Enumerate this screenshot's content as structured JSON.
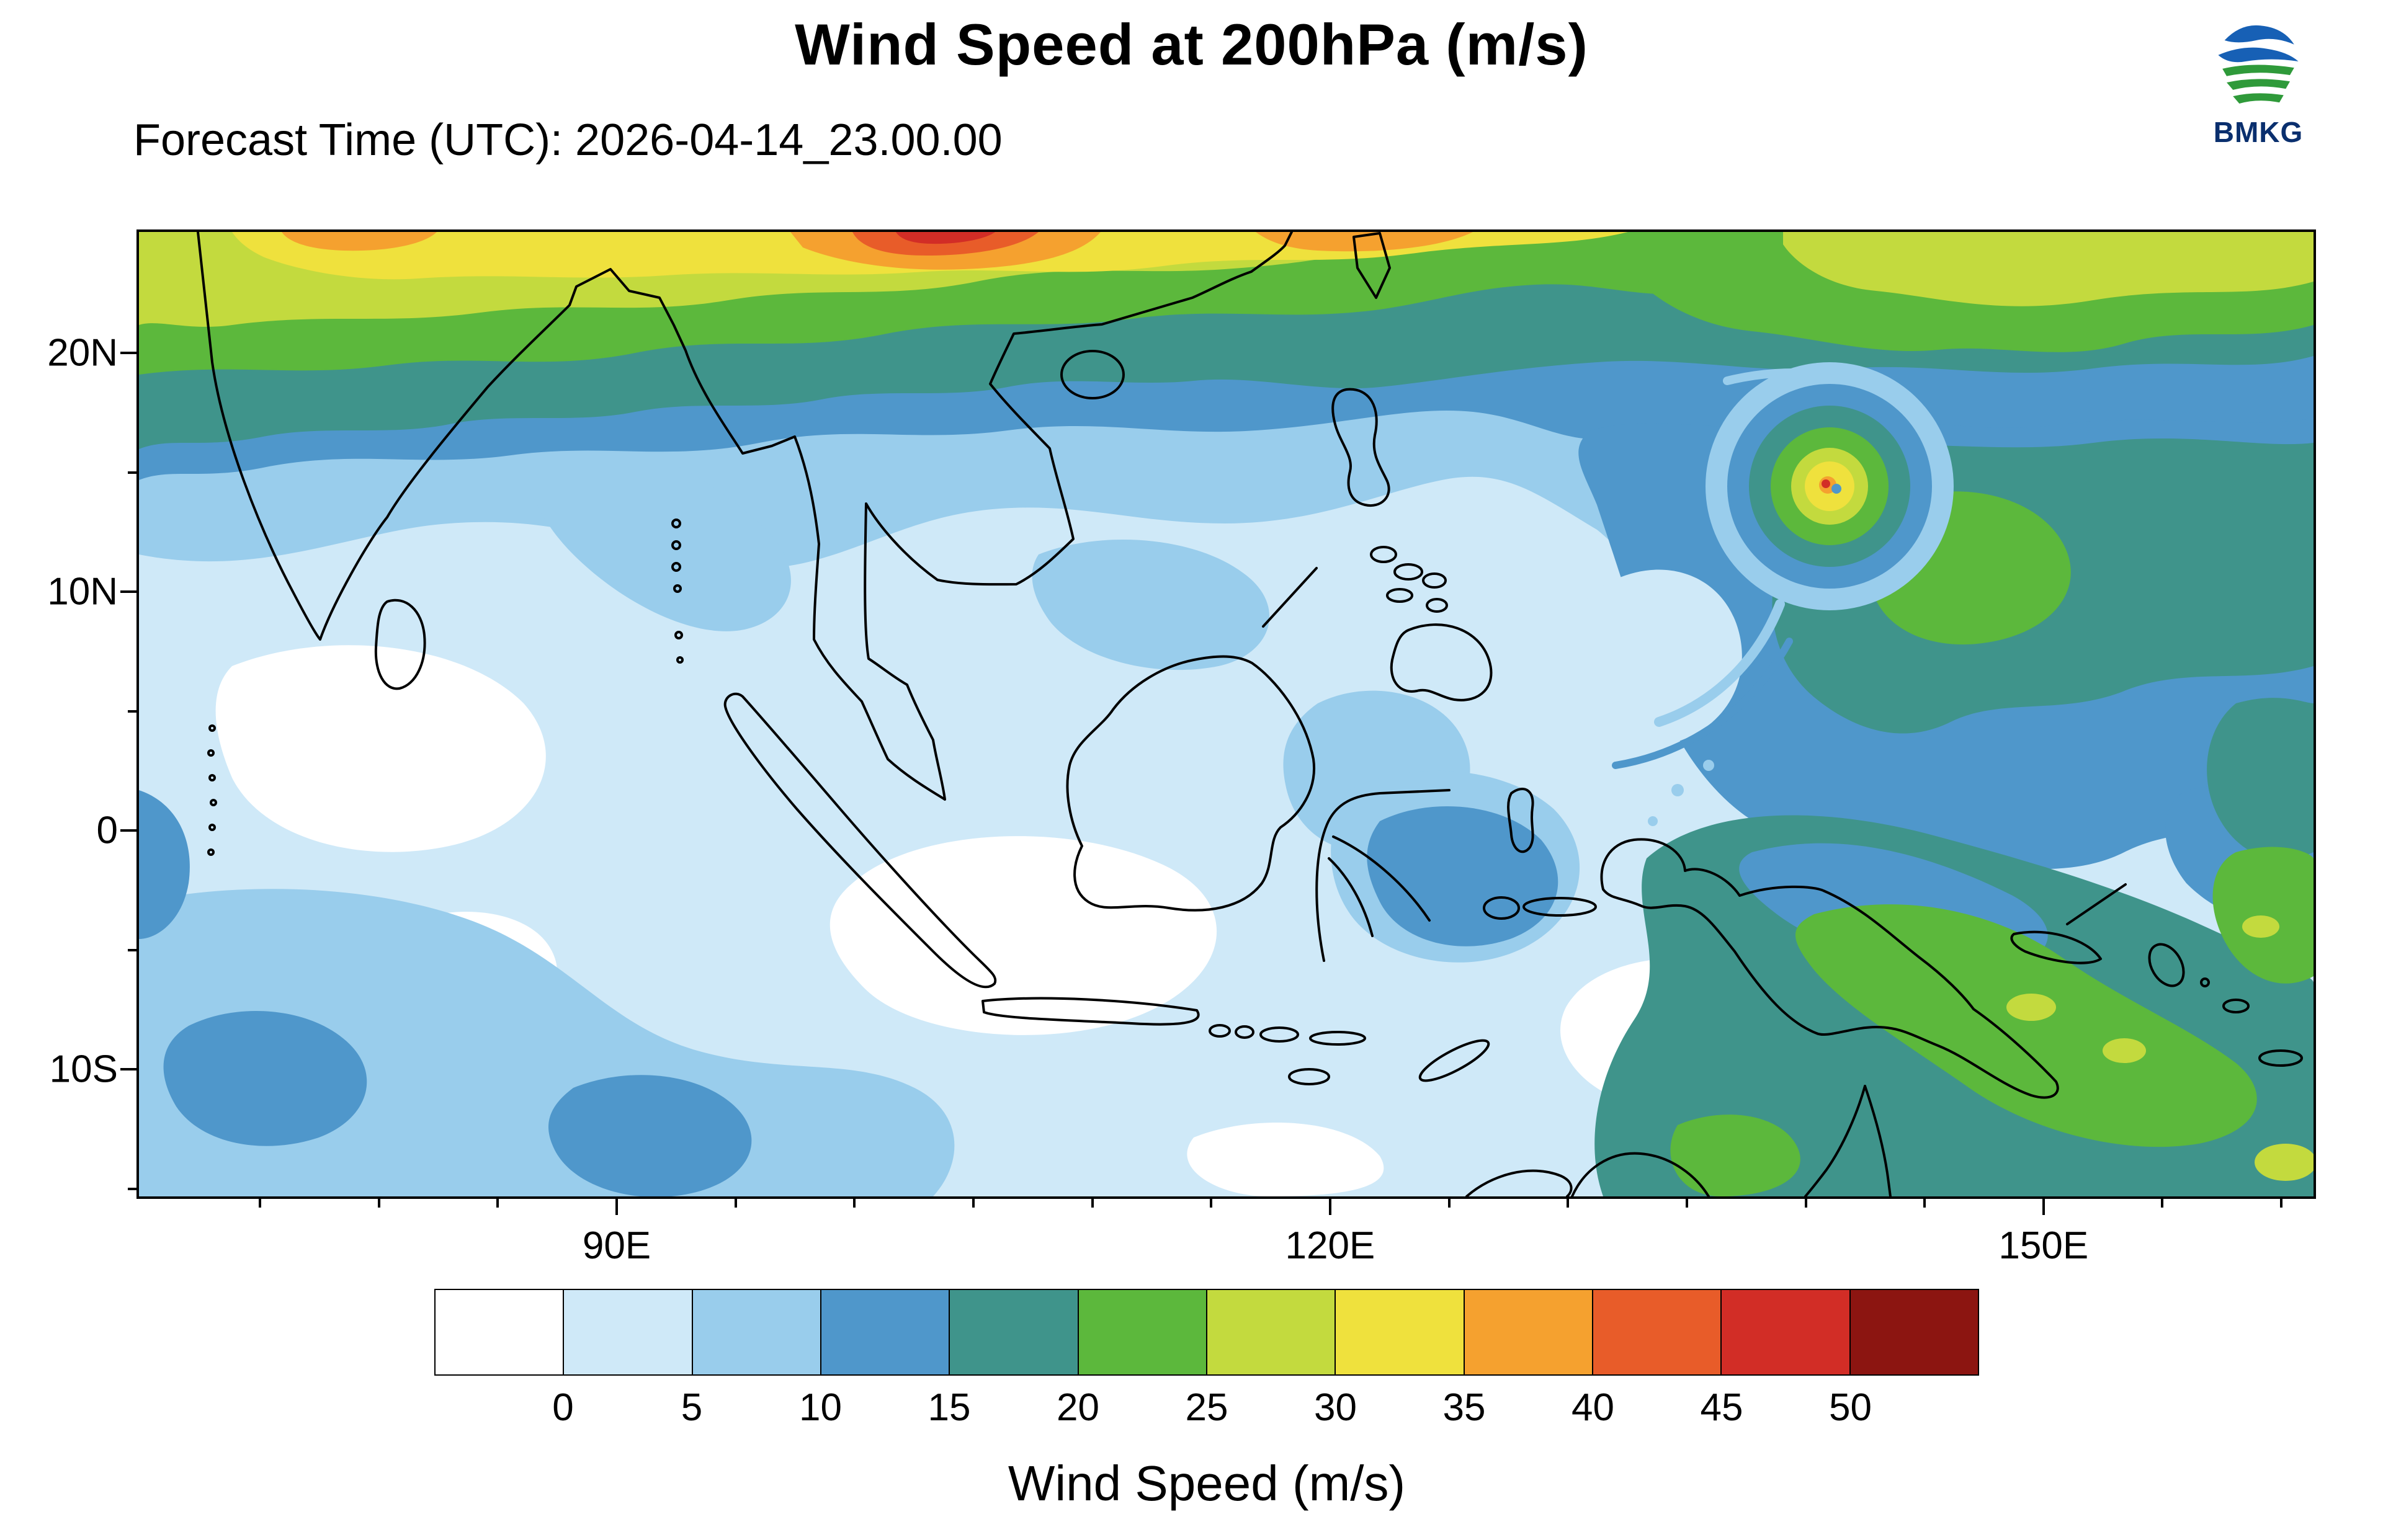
{
  "header": {
    "title": "Wind Speed at 200hPa (m/s)",
    "forecast_label": "Forecast Time (UTC): 2026-04-14_23.00.00",
    "logo_text": "BMKG"
  },
  "map": {
    "y_axis_ticks": [
      "20N",
      "10N",
      "0",
      "10S"
    ],
    "x_axis_ticks": [
      "90E",
      "120E",
      "150E"
    ]
  },
  "colorbar": {
    "title": "Wind Speed (m/s)",
    "tick_labels": [
      "0",
      "5",
      "10",
      "15",
      "20",
      "25",
      "30",
      "35",
      "40",
      "45",
      "50"
    ],
    "colors": [
      "#ffffff",
      "#cfe9f8",
      "#99cdec",
      "#4f97cb",
      "#3f948b",
      "#5cb83c",
      "#c3da3e",
      "#efe13d",
      "#f5a12f",
      "#e85c29",
      "#d22d26",
      "#8c1511"
    ]
  },
  "chart_data": {
    "type": "heatmap",
    "title": "Wind Speed at 200hPa (m/s)",
    "forecast_time_utc": "2026-04-14_23.00.00",
    "variable": "wind speed",
    "level": "200hPa",
    "units": "m/s",
    "lon_range_deg_e": [
      70,
      161
    ],
    "lat_range_deg": [
      -15.5,
      25
    ],
    "x_tick_values_deg_e": [
      90,
      120,
      150
    ],
    "y_tick_values_deg": [
      20,
      10,
      0,
      -10
    ],
    "contour_levels_ms": [
      0,
      5,
      10,
      15,
      20,
      25,
      30,
      35,
      40,
      45,
      50
    ],
    "palette": [
      "#ffffff",
      "#cfe9f8",
      "#99cdec",
      "#4f97cb",
      "#3f948b",
      "#5cb83c",
      "#c3da3e",
      "#efe13d",
      "#f5a12f",
      "#e85c29",
      "#d22d26",
      "#8c1511"
    ],
    "legend_position": "bottom",
    "grid": false,
    "features": [
      "Subtropical jet along the northern edge (~25N) with 20-45 m/s winds; strongest orange/red core near 97-110E",
      "Tropical-cyclone-like circulation near 141E, 14.5N with a 25-40 m/s ring around a calm center and spiral bands to its southwest",
      "Broad 15-30 m/s flow over Papua / far western Pacific (bottom right), locally 25-30 m/s",
      "Light winds (0-10 m/s) over most of the Maritime Continent and eastern Indian Ocean, with patches below 5 m/s",
      "10-15 m/s band along the bottom-left (southern Indian Ocean) boundary"
    ]
  }
}
